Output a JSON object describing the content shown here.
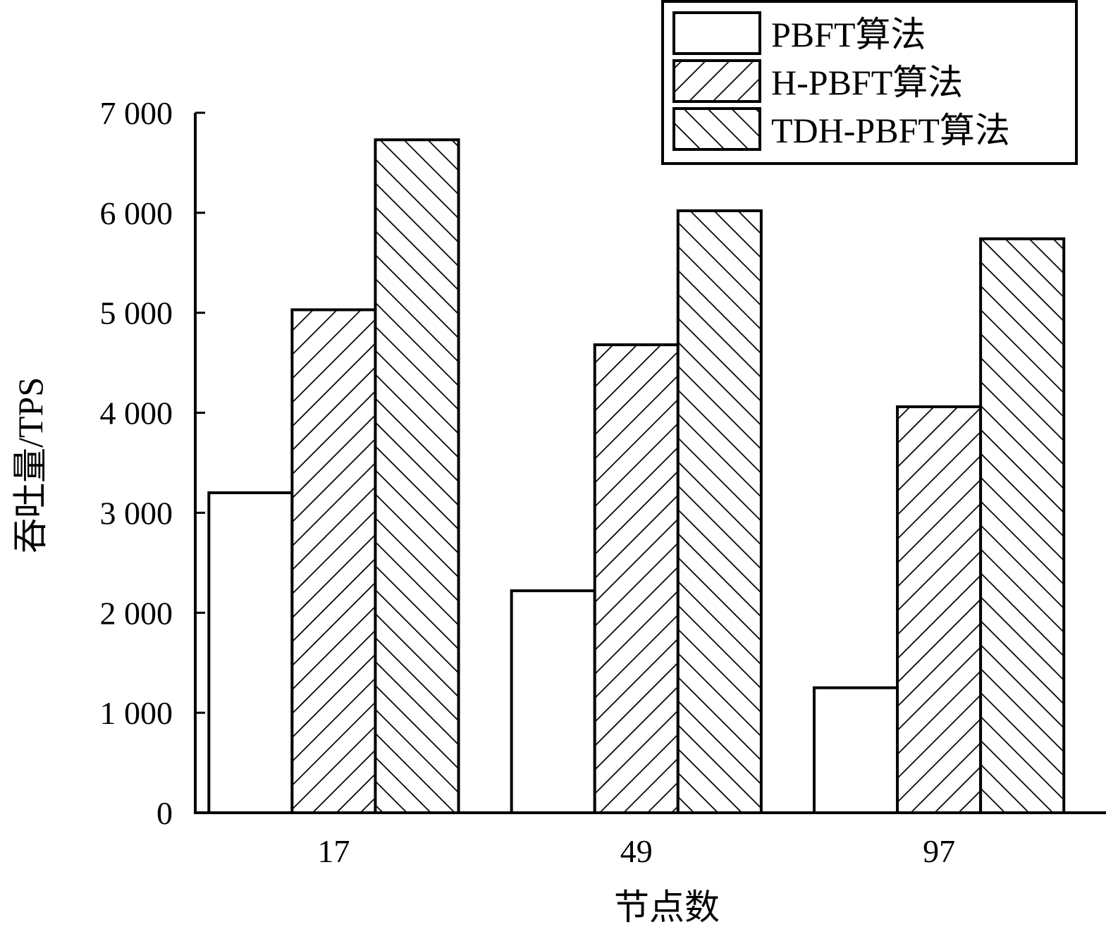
{
  "chart_data": {
    "type": "bar",
    "categories": [
      "17",
      "49",
      "97"
    ],
    "series": [
      {
        "name": "PBFT算法",
        "values": [
          3200,
          2220,
          1250
        ],
        "pattern": "none"
      },
      {
        "name": "H-PBFT算法",
        "values": [
          5030,
          4680,
          4060
        ],
        "pattern": "forward-hatch"
      },
      {
        "name": "TDH-PBFT算法",
        "values": [
          6730,
          6020,
          5740
        ],
        "pattern": "back-hatch"
      }
    ],
    "xlabel": "节点数",
    "ylabel": "吞吐量/TPS",
    "ylim": [
      0,
      7000
    ],
    "yticks": [
      0,
      1000,
      2000,
      3000,
      4000,
      5000,
      6000,
      7000
    ],
    "ytick_labels": [
      "0",
      "1 000",
      "2 000",
      "3 000",
      "4 000",
      "5 000",
      "6 000",
      "7 000"
    ],
    "grid": false,
    "legend_position": "top-right",
    "colors": {
      "bar_fill": "#ffffff",
      "stroke": "#000000"
    }
  }
}
